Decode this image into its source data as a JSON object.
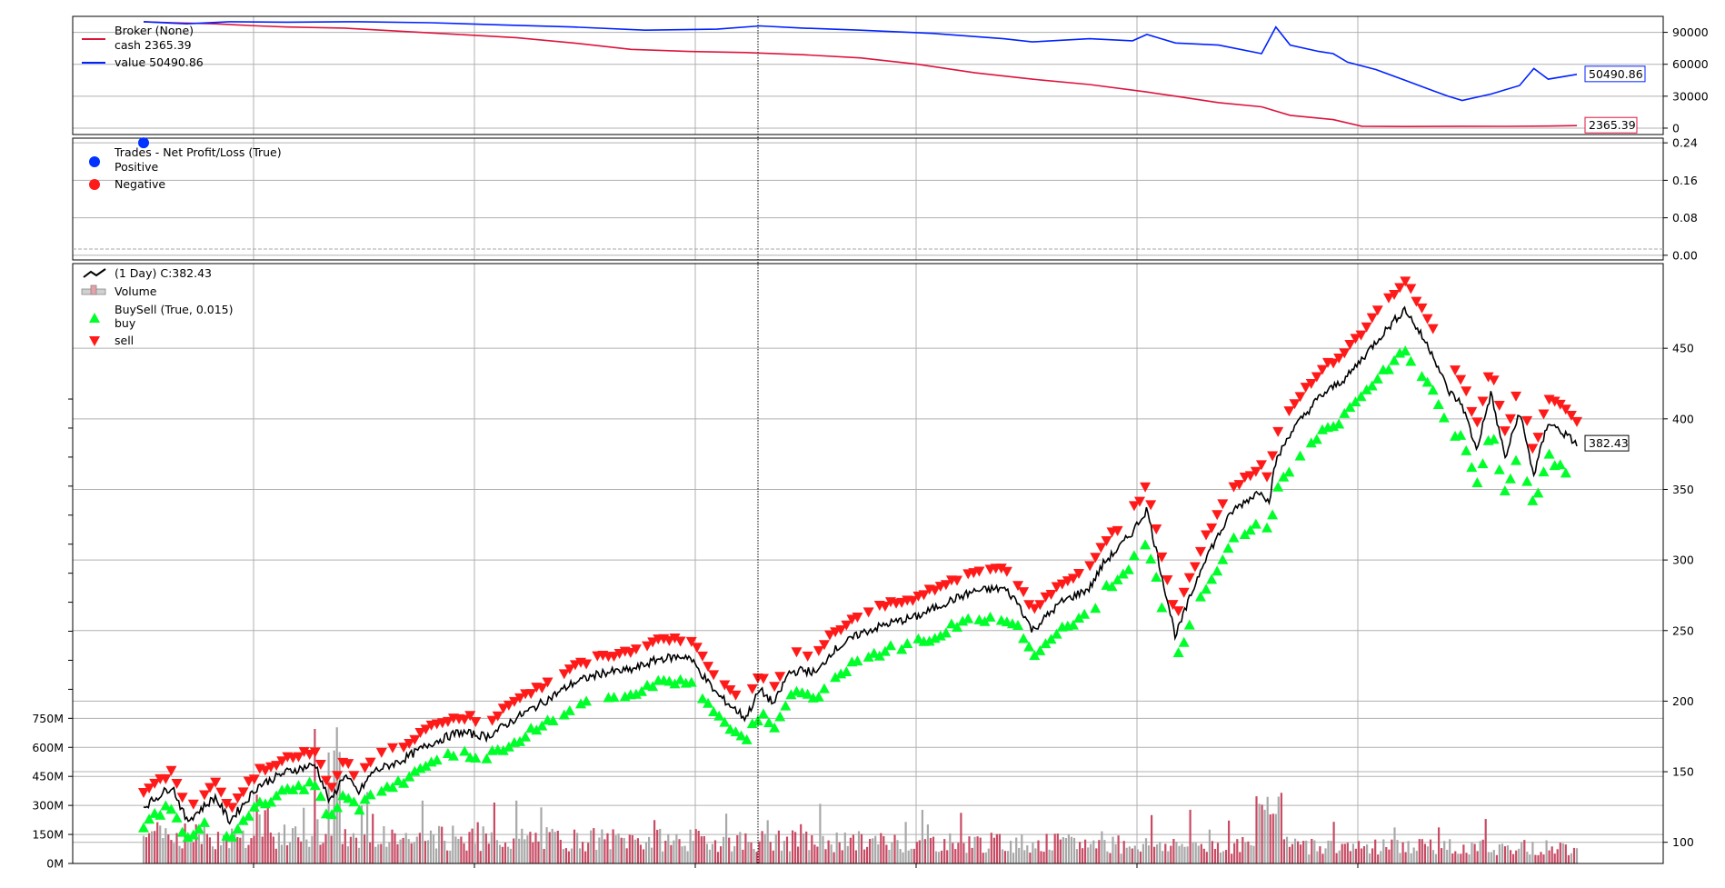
{
  "chart_data": [
    {
      "panel": "broker",
      "type": "line",
      "title": "",
      "legend": {
        "placement": "top-left",
        "entries": [
          {
            "label_line1": "Broker (None)",
            "label_line2": "cash 2365.39",
            "color": "#dc143c"
          },
          {
            "label_line1": "value 50490.86",
            "label_line2": "",
            "color": "#0022ff"
          }
        ]
      },
      "ylim": [
        -6000,
        105000
      ],
      "yticks": [
        0,
        30000,
        60000,
        90000
      ],
      "ytick_labels": [
        "0",
        "30000",
        "60000",
        "90000"
      ],
      "grid": true,
      "series": [
        {
          "name": "cash",
          "color": "#dc143c",
          "x": [
            0,
            0.02,
            0.05,
            0.08,
            0.1,
            0.14,
            0.18,
            0.22,
            0.26,
            0.3,
            0.34,
            0.38,
            0.42,
            0.46,
            0.5,
            0.54,
            0.58,
            0.62,
            0.66,
            0.7,
            0.72,
            0.75,
            0.78,
            0.8,
            0.83,
            0.85,
            0.88,
            0.9,
            0.92,
            0.95,
            0.98,
            1.0
          ],
          "y": [
            100000,
            99000,
            98000,
            96000,
            95000,
            94000,
            91000,
            88000,
            85000,
            80000,
            74000,
            72000,
            71000,
            69000,
            66000,
            60000,
            52000,
            46000,
            41000,
            34000,
            30000,
            24000,
            20000,
            12000,
            8000,
            1800,
            1500,
            1600,
            1800,
            1700,
            1900,
            2365.39
          ]
        },
        {
          "name": "value",
          "color": "#0022ff",
          "x": [
            0,
            0.03,
            0.06,
            0.1,
            0.15,
            0.2,
            0.25,
            0.3,
            0.35,
            0.4,
            0.43,
            0.46,
            0.5,
            0.55,
            0.6,
            0.62,
            0.66,
            0.69,
            0.7,
            0.72,
            0.75,
            0.78,
            0.79,
            0.8,
            0.82,
            0.83,
            0.84,
            0.86,
            0.88,
            0.89,
            0.9,
            0.91,
            0.92,
            0.94,
            0.96,
            0.97,
            0.98,
            1.0
          ],
          "y": [
            100000,
            98000,
            100000,
            99500,
            100000,
            99000,
            97000,
            95000,
            92000,
            93000,
            96000,
            94000,
            92000,
            89000,
            84000,
            81000,
            84000,
            82000,
            88000,
            80000,
            78000,
            70000,
            95000,
            78000,
            72000,
            70000,
            62000,
            55000,
            45000,
            40000,
            35000,
            30000,
            26000,
            32000,
            40000,
            56000,
            46000,
            50490.86
          ]
        }
      ],
      "last_value_labels": [
        {
          "text": "50490.86",
          "value": 50490.86,
          "color": "#0022ff"
        },
        {
          "text": "2365.39",
          "value": 2365.39,
          "color": "#dc143c"
        }
      ]
    },
    {
      "panel": "trades",
      "type": "scatter",
      "title": "",
      "legend": {
        "placement": "top-left",
        "entries": [
          {
            "label": "Trades - Net Profit/Loss (True)",
            "color": ""
          },
          {
            "label": "Positive",
            "color": "#0033ff"
          },
          {
            "label": "Negative",
            "color": "#ff1a1a"
          }
        ]
      },
      "ylim": [
        -0.01,
        0.25
      ],
      "yticks": [
        0.0,
        0.08,
        0.16,
        0.24
      ],
      "ytick_labels": [
        "0.00",
        "0.08",
        "0.16",
        "0.24"
      ],
      "grid": true,
      "points": [
        {
          "series": "Positive",
          "x": 0.0,
          "y": 0.24
        }
      ]
    },
    {
      "panel": "price",
      "type": "line",
      "title": "",
      "legend": {
        "placement": "top-left",
        "entries": [
          {
            "label": " (1 Day) C:382.43",
            "color": "#000000"
          },
          {
            "label": "Volume",
            "color": "#c84a63"
          },
          {
            "label_line1": "BuySell (True, 0.015)",
            "label_line2": "buy",
            "color": "#00ff2a"
          },
          {
            "label": "sell",
            "color": "#ff1a1a"
          }
        ]
      },
      "ylim": [
        85,
        510
      ],
      "yticks": [
        100,
        150,
        200,
        250,
        300,
        350,
        400,
        450
      ],
      "ytick_labels": [
        "100",
        "150",
        "200",
        "250",
        "300",
        "350",
        "400",
        "450"
      ],
      "volume_axis": {
        "ylim": [
          0,
          3100
        ],
        "yticks": [
          0,
          150,
          300,
          450,
          600,
          750
        ],
        "ytick_labels": [
          "0M",
          "150M",
          "300M",
          "450M",
          "600M",
          "750M"
        ],
        "unit": "M"
      },
      "grid": true,
      "close": {
        "x": [
          0,
          0.02,
          0.03,
          0.05,
          0.06,
          0.08,
          0.1,
          0.12,
          0.13,
          0.14,
          0.15,
          0.16,
          0.18,
          0.2,
          0.22,
          0.24,
          0.26,
          0.28,
          0.3,
          0.32,
          0.34,
          0.36,
          0.38,
          0.4,
          0.42,
          0.43,
          0.44,
          0.45,
          0.46,
          0.47,
          0.48,
          0.5,
          0.52,
          0.54,
          0.56,
          0.58,
          0.6,
          0.61,
          0.62,
          0.64,
          0.66,
          0.67,
          0.68,
          0.69,
          0.7,
          0.72,
          0.74,
          0.76,
          0.78,
          0.785,
          0.79,
          0.8,
          0.82,
          0.84,
          0.86,
          0.88,
          0.9,
          0.91,
          0.92,
          0.93,
          0.94,
          0.95,
          0.96,
          0.97,
          0.98,
          1.0
        ],
        "y": [
          125,
          140,
          115,
          132,
          115,
          140,
          150,
          155,
          128,
          148,
          135,
          150,
          158,
          170,
          178,
          175,
          188,
          200,
          213,
          220,
          222,
          230,
          232,
          205,
          188,
          208,
          198,
          220,
          222,
          220,
          235,
          248,
          255,
          260,
          270,
          278,
          280,
          270,
          250,
          270,
          280,
          298,
          308,
          320,
          336,
          246,
          300,
          335,
          350,
          340,
          370,
          390,
          415,
          430,
          455,
          478,
          445,
          420,
          410,
          378,
          418,
          372,
          405,
          360,
          398,
          382.43
        ]
      },
      "buy_markers": {
        "color": "#00ff2a",
        "shape": "triangle-up"
      },
      "sell_markers": {
        "color": "#ff1a1a",
        "shape": "triangle-down"
      },
      "last_value_label": {
        "text": "382.43",
        "value": 382.43
      },
      "volume_color": "#c84a63",
      "volume_alt_color": "#a8a8a8"
    }
  ]
}
